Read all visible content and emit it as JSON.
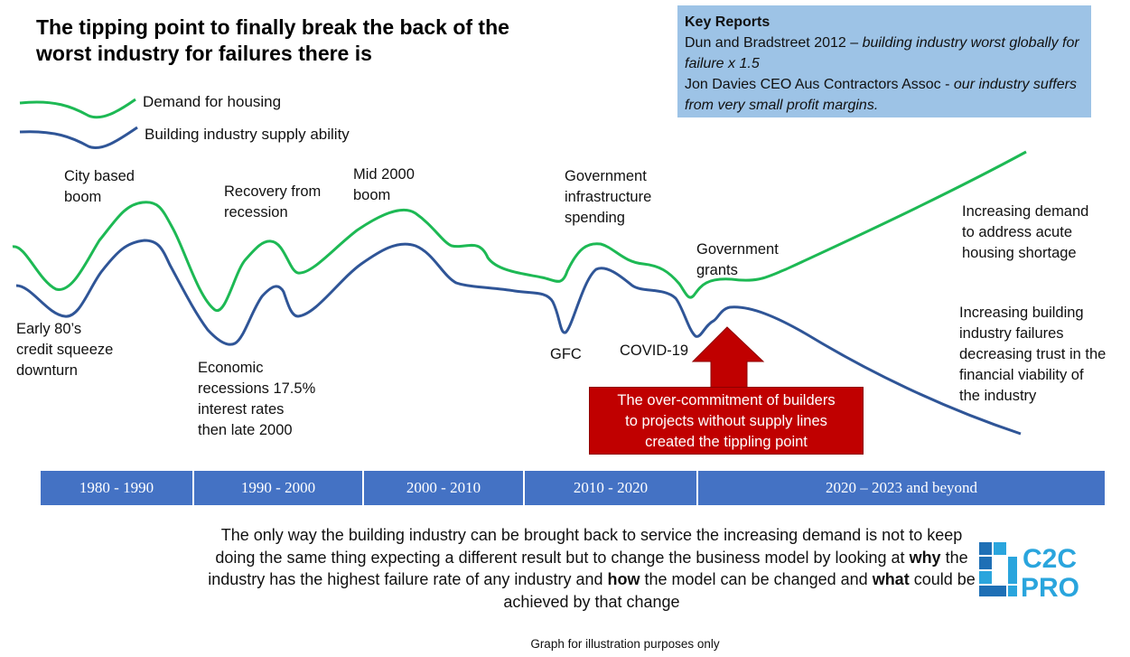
{
  "title": "The tipping point to finally break the back of the worst industry for failures there is",
  "key_reports": {
    "heading": "Key Reports",
    "line1_plain": "Dun and Bradstreet 2012 – ",
    "line1_italic": "building industry worst globally for failure x 1.5",
    "line2_plain": "Jon Davies CEO Aus Contractors Assoc - ",
    "line2_italic": "our industry suffers from very small profit margins."
  },
  "legend": {
    "demand": {
      "label": "Demand for housing",
      "color": "#1db954"
    },
    "supply": {
      "label": "Building industry supply ability",
      "color": "#2f5597"
    }
  },
  "annotations": {
    "early80s": [
      "Early 80’s",
      "credit squeeze",
      "downturn"
    ],
    "city_boom": [
      "City based",
      "boom"
    ],
    "econ_recession": [
      "Economic",
      "recessions 17.5%",
      "interest rates",
      "then late 2000"
    ],
    "recovery": [
      "Recovery from",
      "recession"
    ],
    "mid2000": [
      "Mid 2000",
      "boom"
    ],
    "gov_infra": [
      "Government",
      "infrastructure",
      "spending"
    ],
    "gfc": "GFC",
    "covid": "COVID-19",
    "gov_grants": [
      "Government",
      "grants"
    ],
    "inc_demand": [
      "Increasing demand",
      "to address acute",
      "housing shortage"
    ],
    "inc_failures": [
      "Increasing building",
      "industry failures",
      "decreasing trust in the",
      "financial viability of",
      "the industry"
    ]
  },
  "callout": {
    "lines": [
      "The over-commitment of builders",
      "to projects without supply lines",
      "created the tippling point"
    ],
    "color": "#c00000"
  },
  "timeline": {
    "color": "#4472c4",
    "segments": [
      "1980 - 1990",
      "1990  - 2000",
      "2000 - 2010",
      "2010 - 2020",
      "2020 – 2023 and beyond"
    ]
  },
  "bottom": {
    "p1": "The only way the building industry can be brought back to service the increasing demand is not to keep doing the same thing expecting a different result but to change the business model by looking at ",
    "why": "why",
    "p2": " the industry has the highest failure rate of any industry and ",
    "how": "how",
    "p3": " the model can be changed and ",
    "what": "what",
    "p4": " could be achieved by that change"
  },
  "disclaimer": "Graph for illustration purposes only",
  "logo": {
    "line1": "C2C",
    "line2": "PRO",
    "color": "#2aa5dd",
    "dark": "#1e6fb5"
  }
}
